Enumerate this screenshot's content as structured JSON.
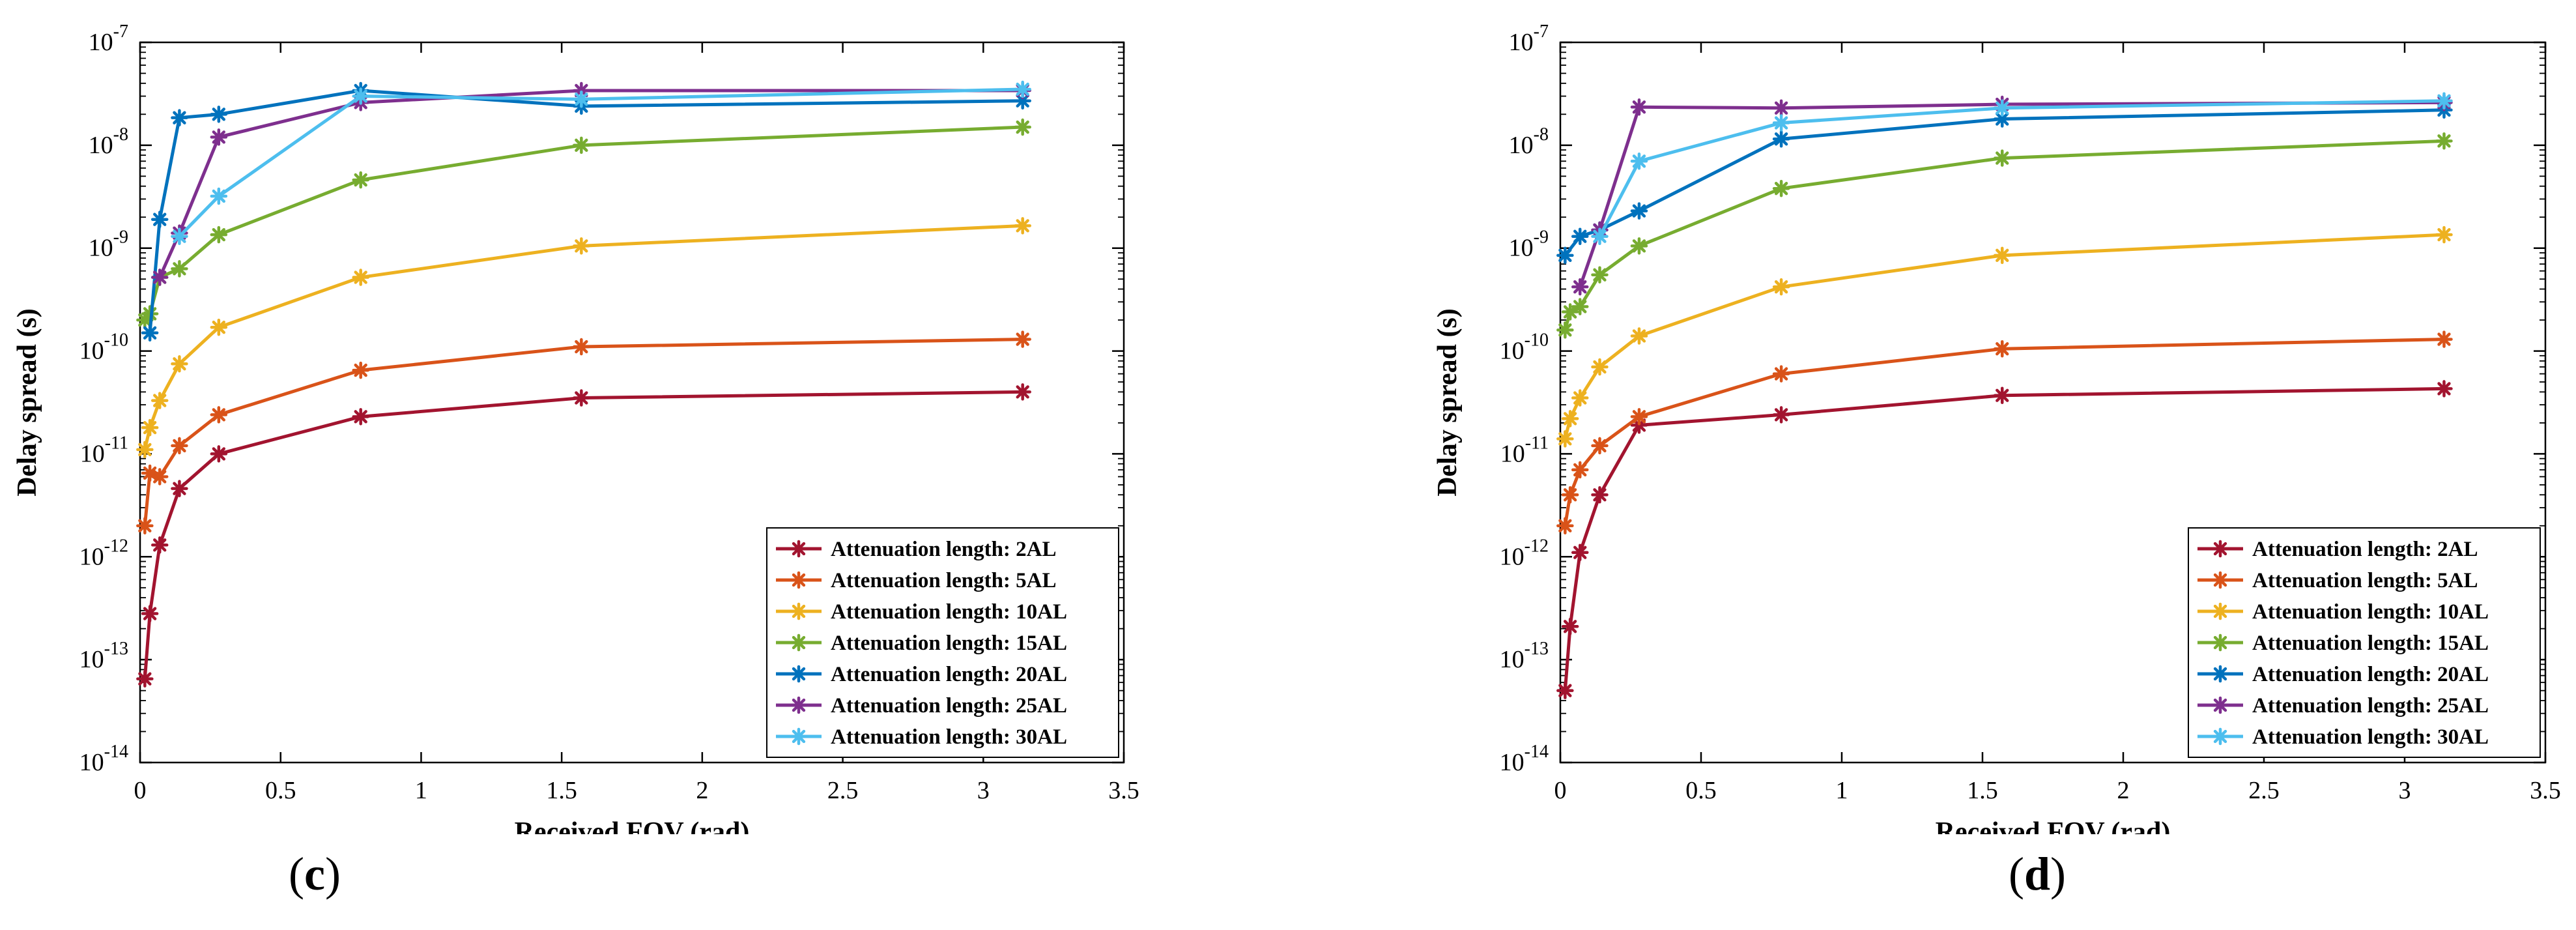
{
  "chart_data": [
    {
      "panel": "c",
      "type": "line",
      "yscale": "log",
      "xlabel": "Received FOV (rad)",
      "ylabel": "Delay spread (s)",
      "xlim": [
        0,
        3.5
      ],
      "ylim": [
        1e-14,
        1e-07
      ],
      "xticks": [
        "0",
        "0.5",
        "1",
        "1.5",
        "2",
        "2.5",
        "3",
        "3.5"
      ],
      "yticks": [
        {
          "base": "10",
          "exp": "-14"
        },
        {
          "base": "10",
          "exp": "-13"
        },
        {
          "base": "10",
          "exp": "-12"
        },
        {
          "base": "10",
          "exp": "-11"
        },
        {
          "base": "10",
          "exp": "-10"
        },
        {
          "base": "10",
          "exp": "-9"
        },
        {
          "base": "10",
          "exp": "-8"
        },
        {
          "base": "10",
          "exp": "-7"
        }
      ],
      "legend_position": "bottom-right",
      "series": [
        {
          "name": "Attenuation length: 2AL",
          "color": "#A2142F",
          "x": [
            0.017,
            0.035,
            0.07,
            0.14,
            0.28,
            0.785,
            1.57,
            3.14
          ],
          "y": [
            6.5e-14,
            2.8e-13,
            1.3e-12,
            4.6e-12,
            1e-11,
            2.3e-11,
            3.5e-11,
            4e-11
          ]
        },
        {
          "name": "Attenuation length: 5AL",
          "color": "#D95319",
          "x": [
            0.017,
            0.035,
            0.07,
            0.14,
            0.28,
            0.785,
            1.57,
            3.14
          ],
          "y": [
            2e-12,
            6.5e-12,
            6e-12,
            1.2e-11,
            2.4e-11,
            6.5e-11,
            1.1e-10,
            1.3e-10
          ]
        },
        {
          "name": "Attenuation length: 10AL",
          "color": "#EDB120",
          "x": [
            0.017,
            0.035,
            0.07,
            0.14,
            0.28,
            0.785,
            1.57,
            3.14
          ],
          "y": [
            1.1e-11,
            1.8e-11,
            3.3e-11,
            7.5e-11,
            1.7e-10,
            5.2e-10,
            1.05e-09,
            1.65e-09
          ]
        },
        {
          "name": "Attenuation length: 15AL",
          "color": "#77AC30",
          "x": [
            0.017,
            0.035,
            0.07,
            0.14,
            0.28,
            0.785,
            1.57,
            3.14
          ],
          "y": [
            2e-10,
            2.3e-10,
            5.2e-10,
            6.3e-10,
            1.35e-09,
            4.6e-09,
            1e-08,
            1.5e-08
          ]
        },
        {
          "name": "Attenuation length: 20AL",
          "color": "#0072BD",
          "x": [
            0.035,
            0.07,
            0.14,
            0.28,
            0.785,
            1.57,
            3.14
          ],
          "y": [
            1.5e-10,
            1.9e-09,
            1.85e-08,
            2e-08,
            3.4e-08,
            2.4e-08,
            2.7e-08
          ]
        },
        {
          "name": "Attenuation length: 25AL",
          "color": "#7E2F8E",
          "x": [
            0.07,
            0.14,
            0.28,
            0.785,
            1.57,
            3.14
          ],
          "y": [
            5.2e-10,
            1.4e-09,
            1.2e-08,
            2.6e-08,
            3.4e-08,
            3.4e-08
          ]
        },
        {
          "name": "Attenuation length: 30AL",
          "color": "#4DBEEE",
          "x": [
            0.14,
            0.28,
            0.785,
            1.57,
            3.14
          ],
          "y": [
            1.3e-09,
            3.2e-09,
            3e-08,
            2.8e-08,
            3.5e-08
          ]
        }
      ]
    },
    {
      "panel": "d",
      "type": "line",
      "yscale": "log",
      "xlabel": "Received FOV (rad)",
      "ylabel": "Delay spread (s)",
      "xlim": [
        0,
        3.5
      ],
      "ylim": [
        1e-14,
        1e-07
      ],
      "xticks": [
        "0",
        "0.5",
        "1",
        "1.5",
        "2",
        "2.5",
        "3",
        "3.5"
      ],
      "yticks": [
        {
          "base": "10",
          "exp": "-14"
        },
        {
          "base": "10",
          "exp": "-13"
        },
        {
          "base": "10",
          "exp": "-12"
        },
        {
          "base": "10",
          "exp": "-11"
        },
        {
          "base": "10",
          "exp": "-10"
        },
        {
          "base": "10",
          "exp": "-9"
        },
        {
          "base": "10",
          "exp": "-8"
        },
        {
          "base": "10",
          "exp": "-7"
        }
      ],
      "legend_position": "bottom-right",
      "series": [
        {
          "name": "Attenuation length: 2AL",
          "color": "#A2142F",
          "x": [
            0.017,
            0.035,
            0.07,
            0.14,
            0.28,
            0.785,
            1.57,
            3.14
          ],
          "y": [
            5e-14,
            2.1e-13,
            1.1e-12,
            4e-12,
            1.9e-11,
            2.4e-11,
            3.7e-11,
            4.3e-11
          ]
        },
        {
          "name": "Attenuation length: 5AL",
          "color": "#D95319",
          "x": [
            0.017,
            0.035,
            0.07,
            0.14,
            0.28,
            0.785,
            1.57,
            3.14
          ],
          "y": [
            2e-12,
            4e-12,
            7e-12,
            1.2e-11,
            2.3e-11,
            6e-11,
            1.05e-10,
            1.3e-10
          ]
        },
        {
          "name": "Attenuation length: 10AL",
          "color": "#EDB120",
          "x": [
            0.017,
            0.035,
            0.07,
            0.14,
            0.28,
            0.785,
            1.57,
            3.14
          ],
          "y": [
            1.4e-11,
            2.2e-11,
            3.5e-11,
            7e-11,
            1.4e-10,
            4.2e-10,
            8.5e-10,
            1.35e-09
          ]
        },
        {
          "name": "Attenuation length: 15AL",
          "color": "#77AC30",
          "x": [
            0.017,
            0.035,
            0.07,
            0.14,
            0.28,
            0.785,
            1.57,
            3.14
          ],
          "y": [
            1.6e-10,
            2.4e-10,
            2.7e-10,
            5.5e-10,
            1.05e-09,
            3.8e-09,
            7.5e-09,
            1.1e-08
          ]
        },
        {
          "name": "Attenuation length: 20AL",
          "color": "#0072BD",
          "x": [
            0.017,
            0.07,
            0.14,
            0.28,
            0.785,
            1.57,
            3.14
          ],
          "y": [
            8.5e-10,
            1.3e-09,
            1.5e-09,
            2.3e-09,
            1.15e-08,
            1.8e-08,
            2.2e-08
          ]
        },
        {
          "name": "Attenuation length: 25AL",
          "color": "#7E2F8E",
          "x": [
            0.07,
            0.14,
            0.28,
            0.785,
            1.57,
            3.14
          ],
          "y": [
            4.2e-10,
            1.5e-09,
            2.35e-08,
            2.3e-08,
            2.5e-08,
            2.6e-08
          ]
        },
        {
          "name": "Attenuation length: 30AL",
          "color": "#4DBEEE",
          "x": [
            0.14,
            0.28,
            0.785,
            1.57,
            3.14
          ],
          "y": [
            1.3e-09,
            7e-09,
            1.65e-08,
            2.3e-08,
            2.7e-08
          ]
        }
      ]
    }
  ],
  "panel_labels": [
    "c",
    "d"
  ]
}
